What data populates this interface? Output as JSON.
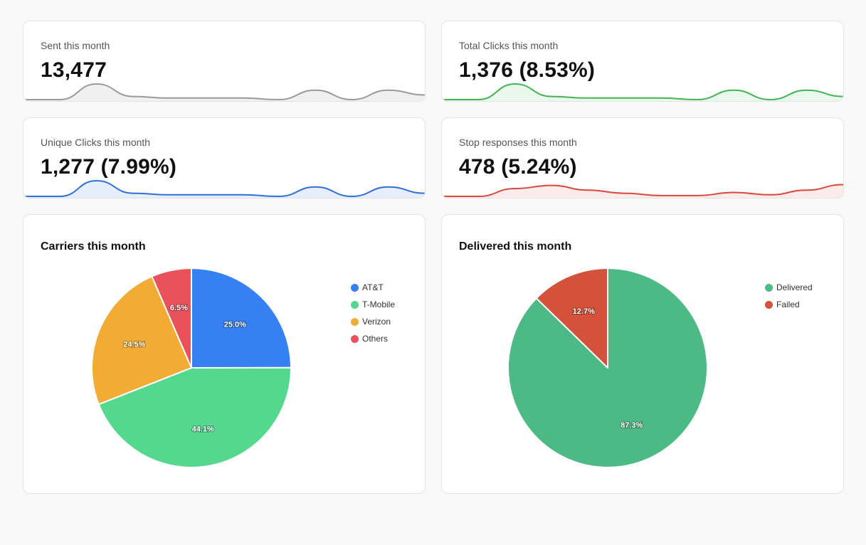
{
  "stats": [
    {
      "label": "Sent this month",
      "value": "13,477",
      "color": "#9a9a9a",
      "fill": "#f0f0f0",
      "spark": [
        0,
        0,
        1,
        0.2,
        0.1,
        0.1,
        0.1,
        0,
        0.6,
        0,
        0.6,
        0.3
      ]
    },
    {
      "label": "Total Clicks this month",
      "value": "1,376 (8.53%)",
      "color": "#3fb650",
      "fill": "#eaf7ec",
      "spark": [
        0,
        0,
        1,
        0.2,
        0.1,
        0.1,
        0.1,
        0,
        0.6,
        0,
        0.6,
        0.2
      ]
    },
    {
      "label": "Unique Clicks this month",
      "value": "1,277 (7.99%)",
      "color": "#2f6fe0",
      "fill": "#e6eefc",
      "spark": [
        0,
        0,
        1,
        0.2,
        0.1,
        0.1,
        0.1,
        0,
        0.6,
        0,
        0.6,
        0.2
      ]
    },
    {
      "label": "Stop responses this month",
      "value": "478 (5.24%)",
      "color": "#d9483b",
      "fill": "#fbeceb",
      "spark": [
        0,
        0,
        0.5,
        0.7,
        0.4,
        0.2,
        0.05,
        0.05,
        0.25,
        0.1,
        0.4,
        0.75
      ]
    }
  ],
  "chart_data": [
    {
      "type": "pie",
      "title": "Carriers this month",
      "categories": [
        "AT&T",
        "T-Mobile",
        "Verizon",
        "Others"
      ],
      "values": [
        25.0,
        44.1,
        24.5,
        6.5
      ],
      "labels": [
        "25.0%",
        "44.1%",
        "24.5%",
        "6.5%"
      ],
      "colors": [
        "#3580f2",
        "#53d88e",
        "#f2ac33",
        "#e9525a"
      ],
      "legend": "right"
    },
    {
      "type": "pie",
      "title": "Delivered this month",
      "categories": [
        "Delivered",
        "Failed"
      ],
      "values": [
        87.3,
        12.7
      ],
      "labels": [
        "87.3%",
        "12.7%"
      ],
      "colors": [
        "#4dba85",
        "#d4513b"
      ],
      "legend": "right"
    }
  ]
}
